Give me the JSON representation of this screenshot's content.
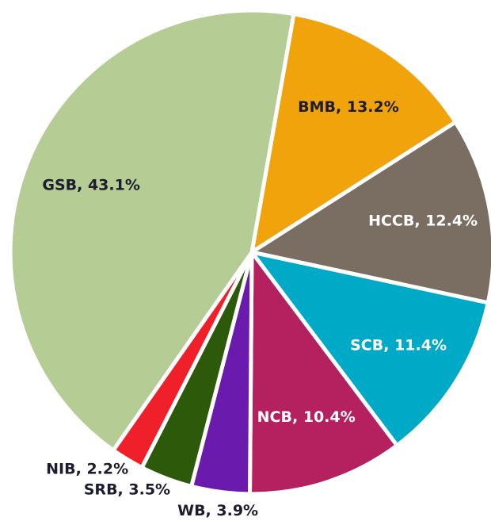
{
  "chart_data": {
    "type": "pie",
    "values": [
      13.2,
      12.4,
      11.4,
      10.4,
      3.9,
      3.5,
      2.2,
      43.1
    ],
    "value_labels": [
      "BMB, 13.2%",
      "HCCB, 12.4%",
      "SCB, 11.4%",
      "NCB, 10.4%",
      "WB, 3.9%",
      "SRB, 3.5%",
      "NIB, 2.2%",
      "GSB, 43.1%"
    ],
    "colors": [
      "#f0a30a",
      "#7a6e63",
      "#00aac6",
      "#b5205f",
      "#6a1bae",
      "#2d5a0a",
      "#f0202a",
      "#b5cc95"
    ],
    "label_colors": [
      "#1c1c2c",
      "#ffffff",
      "#ffffff",
      "#ffffff",
      "#1c1c2c",
      "#1c1c2c",
      "#1c1c2c",
      "#1c1c2c"
    ],
    "start_angle": 10
  }
}
